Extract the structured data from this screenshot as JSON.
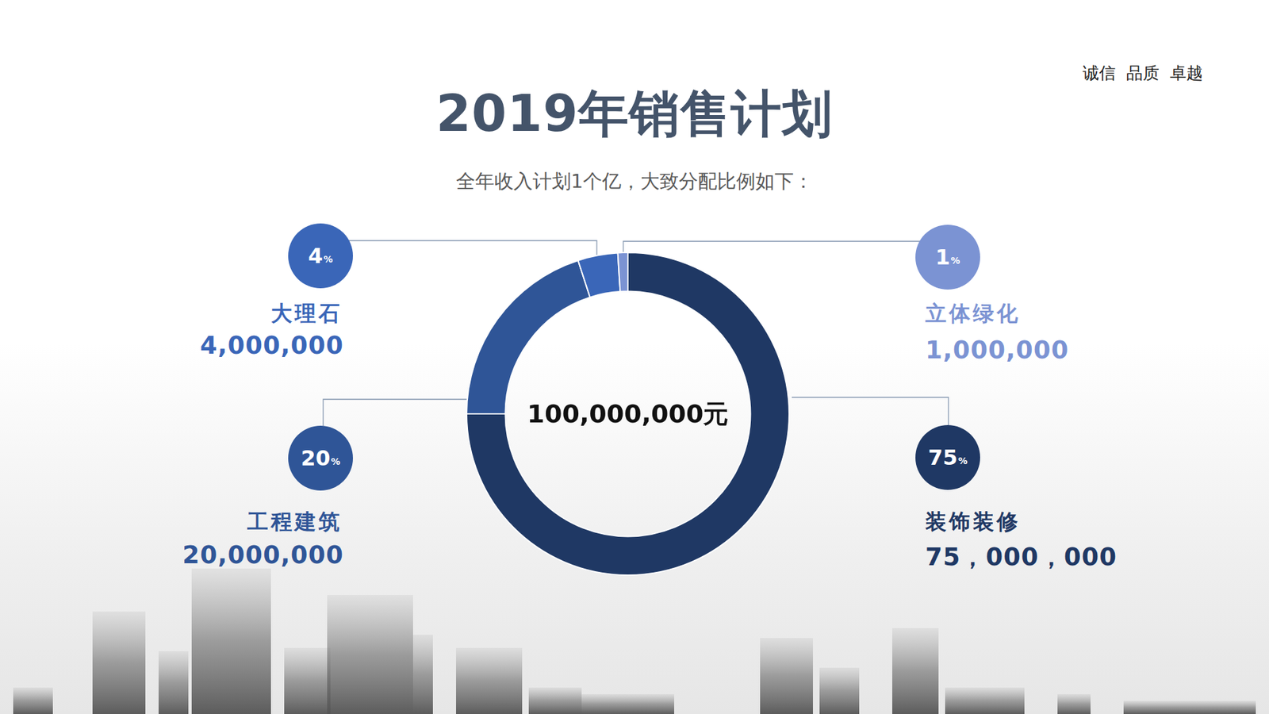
{
  "chart_data": {
    "type": "doughnut",
    "title": "2019年销售计划",
    "subtitle": "全年收入计划1个亿，大致分配比例如下：",
    "annotations": [
      "诚信  品质  卓越"
    ],
    "categories": [
      "装饰装修",
      "工程建筑",
      "大理石",
      "立体绿化"
    ],
    "values": [
      75,
      20,
      4,
      1
    ],
    "value_labels": [
      "75%",
      "20%",
      "4%",
      "1%"
    ],
    "data_labels": true,
    "colors": [
      "#1f3864",
      "#2f5597",
      "#3a66b8",
      "#7b93d3"
    ],
    "amounts": [
      {
        "value": 75000000,
        "label": "75，000，000"
      },
      {
        "value": 20000000,
        "label": "20,000,000"
      },
      {
        "value": 4000000,
        "label": "4,000,000"
      },
      {
        "value": 1000000,
        "label": "1,000,000"
      }
    ],
    "total": {
      "value": 100000000,
      "label": "100,000,000元"
    },
    "legend": false
  }
}
